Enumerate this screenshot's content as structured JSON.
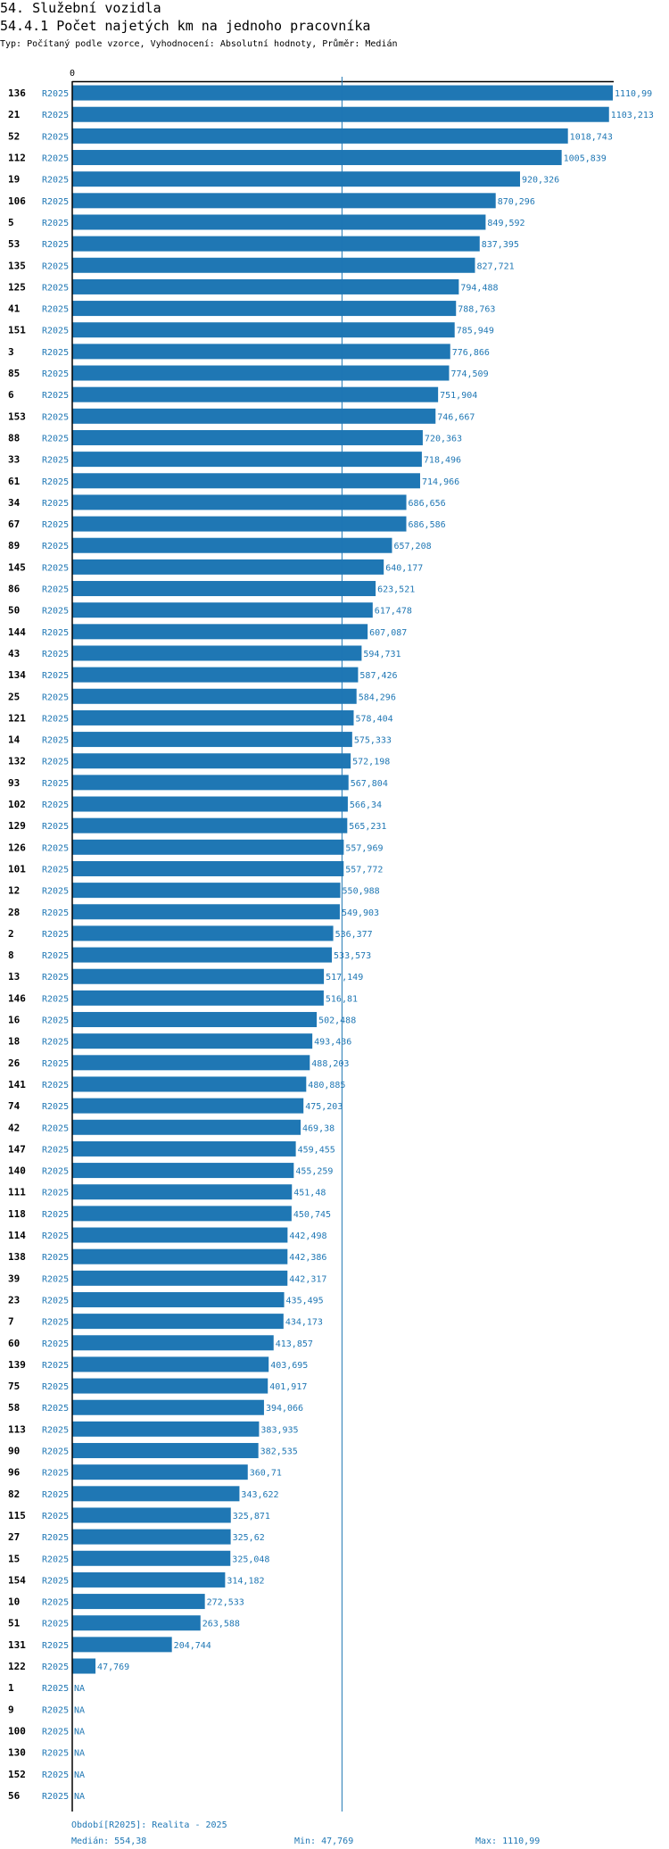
{
  "header": {
    "section": "54. Služební vozidla",
    "title": "54.4.1 Počet najetých km na jednoho pracovníka",
    "subtitle": "Typ: Počítaný podle vzorce, Vyhodnocení: Absolutní hodnoty, Průměr: Medián"
  },
  "footer": {
    "period": "Období[R2025]: Realita - 2025",
    "median": "Medián: 554,38",
    "min": "Min: 47,769",
    "max": "Max: 1110,99"
  },
  "colors": {
    "bar": "#1f77b4",
    "label": "#1f77b4",
    "axis": "#000000",
    "median_line": "#1f77b4"
  },
  "chart_data": {
    "type": "bar",
    "orientation": "horizontal",
    "axis_zero_label": "0",
    "xlim": [
      0,
      1110.99
    ],
    "median": 554.38,
    "series_name": "R2025",
    "categories": [
      "136",
      "21",
      "52",
      "112",
      "19",
      "106",
      "5",
      "53",
      "135",
      "125",
      "41",
      "151",
      "3",
      "85",
      "6",
      "153",
      "88",
      "33",
      "61",
      "34",
      "67",
      "89",
      "145",
      "86",
      "50",
      "144",
      "43",
      "134",
      "25",
      "121",
      "14",
      "132",
      "93",
      "102",
      "129",
      "126",
      "101",
      "12",
      "28",
      "2",
      "8",
      "13",
      "146",
      "16",
      "18",
      "26",
      "141",
      "74",
      "42",
      "147",
      "140",
      "111",
      "118",
      "114",
      "138",
      "39",
      "23",
      "7",
      "60",
      "139",
      "75",
      "58",
      "113",
      "90",
      "96",
      "82",
      "115",
      "27",
      "15",
      "154",
      "10",
      "51",
      "131",
      "122",
      "1",
      "9",
      "100",
      "130",
      "152",
      "56"
    ],
    "values": [
      1110.99,
      1103.213,
      1018.743,
      1005.839,
      920.326,
      870.296,
      849.592,
      837.395,
      827.721,
      794.488,
      788.763,
      785.949,
      776.866,
      774.509,
      751.904,
      746.667,
      720.363,
      718.496,
      714.966,
      686.656,
      686.586,
      657.208,
      640.177,
      623.521,
      617.478,
      607.087,
      594.731,
      587.426,
      584.296,
      578.404,
      575.333,
      572.198,
      567.804,
      566.34,
      565.231,
      557.969,
      557.772,
      550.988,
      549.903,
      536.377,
      533.573,
      517.149,
      516.81,
      502.488,
      493.436,
      488.203,
      480.885,
      475.203,
      469.38,
      459.455,
      455.259,
      451.48,
      450.745,
      442.498,
      442.386,
      442.317,
      435.495,
      434.173,
      413.857,
      403.695,
      401.917,
      394.066,
      383.935,
      382.535,
      360.71,
      343.622,
      325.871,
      325.62,
      325.048,
      314.182,
      272.533,
      263.588,
      204.744,
      47.769,
      null,
      null,
      null,
      null,
      null,
      null
    ],
    "value_labels": [
      "1110,99",
      "1103,213",
      "1018,743",
      "1005,839",
      "920,326",
      "870,296",
      "849,592",
      "837,395",
      "827,721",
      "794,488",
      "788,763",
      "785,949",
      "776,866",
      "774,509",
      "751,904",
      "746,667",
      "720,363",
      "718,496",
      "714,966",
      "686,656",
      "686,586",
      "657,208",
      "640,177",
      "623,521",
      "617,478",
      "607,087",
      "594,731",
      "587,426",
      "584,296",
      "578,404",
      "575,333",
      "572,198",
      "567,804",
      "566,34",
      "565,231",
      "557,969",
      "557,772",
      "550,988",
      "549,903",
      "536,377",
      "533,573",
      "517,149",
      "516,81",
      "502,488",
      "493,436",
      "488,203",
      "480,885",
      "475,203",
      "469,38",
      "459,455",
      "455,259",
      "451,48",
      "450,745",
      "442,498",
      "442,386",
      "442,317",
      "435,495",
      "434,173",
      "413,857",
      "403,695",
      "401,917",
      "394,066",
      "383,935",
      "382,535",
      "360,71",
      "343,622",
      "325,871",
      "325,62",
      "325,048",
      "314,182",
      "272,533",
      "263,588",
      "204,744",
      "47,769",
      "NA",
      "NA",
      "NA",
      "NA",
      "NA",
      "NA"
    ]
  }
}
